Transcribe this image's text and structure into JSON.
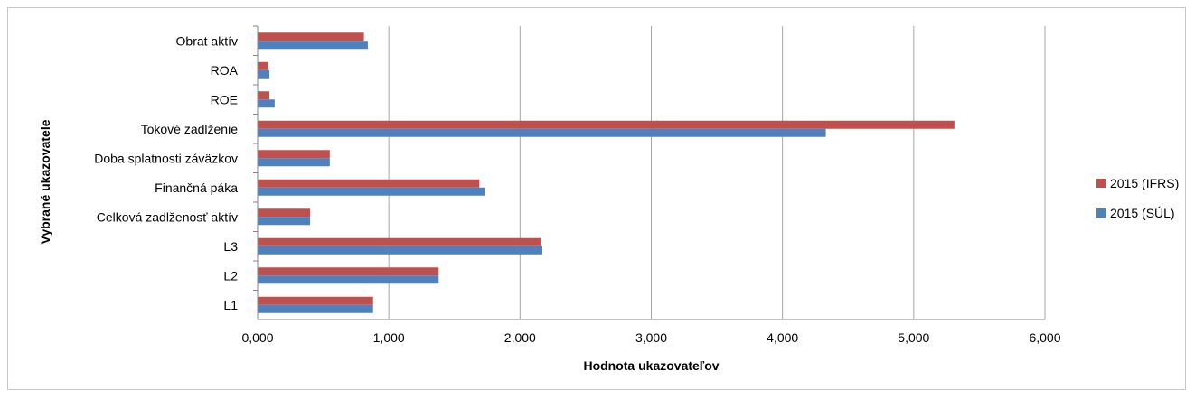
{
  "chart_data": {
    "type": "bar",
    "orientation": "horizontal",
    "categories": [
      "L1",
      "L2",
      "L3",
      "Celková zadlženosť aktív",
      "Finančná páka",
      "Doba splatnosti záväzkov",
      "Tokové zadlženie",
      "ROE",
      "ROA",
      "Obrat aktív"
    ],
    "series": [
      {
        "name": "2015 (IFRS)",
        "color": "#c0504d",
        "values": [
          0.88,
          1.38,
          2.16,
          0.4,
          1.69,
          0.55,
          5.31,
          0.09,
          0.08,
          0.81
        ]
      },
      {
        "name": "2015 (SÚL)",
        "color": "#4f81bd",
        "values": [
          0.88,
          1.38,
          2.17,
          0.4,
          1.73,
          0.55,
          4.33,
          0.13,
          0.09,
          0.84
        ]
      }
    ],
    "xlim": [
      0,
      6
    ],
    "xticks": [
      0,
      1,
      2,
      3,
      4,
      5,
      6
    ],
    "xtick_labels": [
      "0,000",
      "1,000",
      "2,000",
      "3,000",
      "4,000",
      "5,000",
      "6,000"
    ],
    "xlabel": "Hodnota ukazovateľov",
    "ylabel": "Vybrané ukazovatele",
    "title": "",
    "grid": "vertical",
    "legend_position": "right"
  }
}
